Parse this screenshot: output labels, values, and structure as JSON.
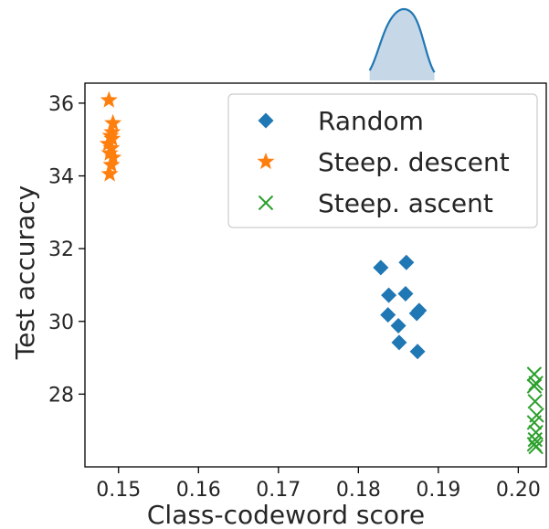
{
  "chart_data": {
    "type": "scatter",
    "title": "",
    "xlabel": "Class-codeword score",
    "ylabel": "Test accuracy",
    "xlim": [
      0.1458,
      0.2035
    ],
    "ylim": [
      26.0,
      36.55
    ],
    "xticks": [
      0.15,
      0.16,
      0.17,
      0.18,
      0.19,
      0.2
    ],
    "xtick_labels": [
      "0.15",
      "0.16",
      "0.17",
      "0.18",
      "0.19",
      "0.20"
    ],
    "yticks": [
      28,
      30,
      32,
      34,
      36
    ],
    "ytick_labels": [
      "28",
      "30",
      "32",
      "34",
      "36"
    ],
    "grid": false,
    "legend_position": "upper-right",
    "marginal_x": "density curve of Random series over x",
    "series": [
      {
        "name": "Random",
        "marker": "diamond",
        "color": "#1f77b4",
        "points": [
          [
            0.1828,
            31.48
          ],
          [
            0.186,
            31.62
          ],
          [
            0.1838,
            30.72
          ],
          [
            0.1859,
            30.76
          ],
          [
            0.1837,
            30.18
          ],
          [
            0.1873,
            30.22
          ],
          [
            0.1876,
            30.3
          ],
          [
            0.185,
            29.88
          ],
          [
            0.1851,
            29.42
          ],
          [
            0.1874,
            29.17
          ]
        ]
      },
      {
        "name": "Steep. descent",
        "marker": "star",
        "color": "#ff7f0e",
        "points": [
          [
            0.1488,
            36.08
          ],
          [
            0.1493,
            35.45
          ],
          [
            0.1492,
            35.2
          ],
          [
            0.149,
            35.1
          ],
          [
            0.1492,
            35.02
          ],
          [
            0.1487,
            34.88
          ],
          [
            0.1491,
            34.76
          ],
          [
            0.1489,
            34.62
          ],
          [
            0.1493,
            34.5
          ],
          [
            0.1491,
            34.3
          ],
          [
            0.1489,
            34.05
          ]
        ]
      },
      {
        "name": "Steep. ascent",
        "marker": "x",
        "color": "#2ca02c",
        "points": [
          [
            0.202,
            28.55
          ],
          [
            0.2022,
            28.3
          ],
          [
            0.202,
            28.22
          ],
          [
            0.2021,
            27.8
          ],
          [
            0.2023,
            27.42
          ],
          [
            0.202,
            27.22
          ],
          [
            0.2022,
            26.95
          ],
          [
            0.2021,
            26.75
          ],
          [
            0.202,
            26.62
          ],
          [
            0.2022,
            26.55
          ]
        ]
      }
    ],
    "colors": {
      "axis": "#000000",
      "kde_fill": "#c6d7e8",
      "kde_line": "#1f77b4"
    }
  }
}
